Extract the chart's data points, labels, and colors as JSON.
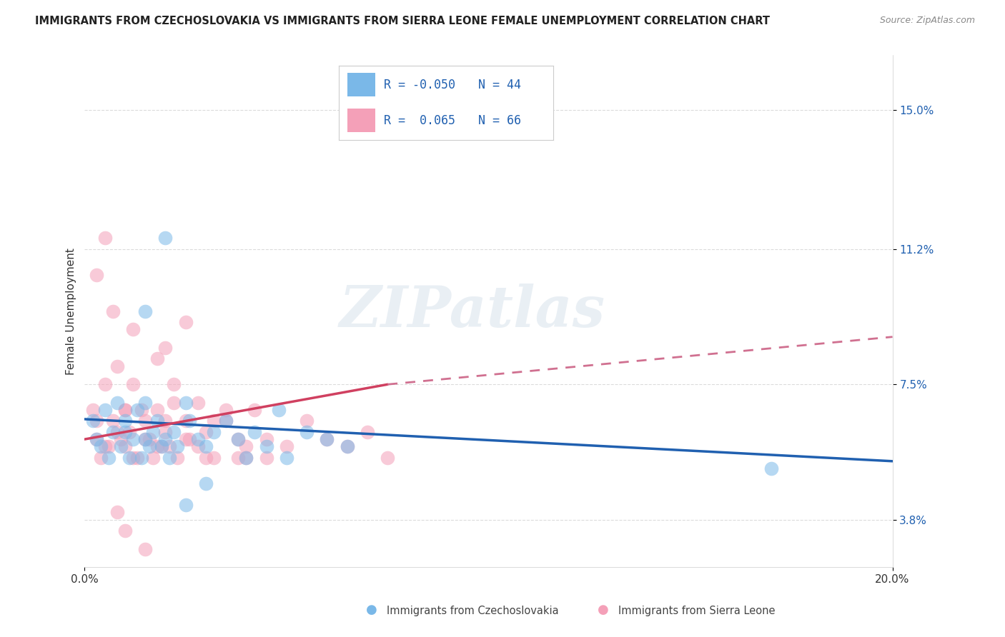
{
  "title": "IMMIGRANTS FROM CZECHOSLOVAKIA VS IMMIGRANTS FROM SIERRA LEONE FEMALE UNEMPLOYMENT CORRELATION CHART",
  "source": "Source: ZipAtlas.com",
  "ylabel": "Female Unemployment",
  "y_tick_labels": [
    "3.8%",
    "7.5%",
    "11.2%",
    "15.0%"
  ],
  "y_tick_values": [
    0.038,
    0.075,
    0.112,
    0.15
  ],
  "xlim": [
    0.0,
    0.2
  ],
  "ylim": [
    0.025,
    0.165
  ],
  "series1_label": "Immigrants from Czechoslovakia",
  "series2_label": "Immigrants from Sierra Leone",
  "color_blue": "#7ab8e8",
  "color_pink": "#f4a0b8",
  "color_blue_line": "#2060b0",
  "color_pink_line": "#d04060",
  "color_pink_dashed": "#d07090",
  "R1": -0.05,
  "N1": 44,
  "R2": 0.065,
  "N2": 66,
  "watermark": "ZIPatlas",
  "background_color": "#ffffff",
  "grid_color": "#cccccc",
  "title_fontsize": 10.5,
  "axis_label_fontsize": 11,
  "tick_fontsize": 11,
  "blue_line_x": [
    0.0,
    0.2
  ],
  "blue_line_y": [
    0.0655,
    0.054
  ],
  "pink_solid_line_x": [
    0.0,
    0.075
  ],
  "pink_solid_line_y": [
    0.06,
    0.075
  ],
  "pink_dashed_line_x": [
    0.075,
    0.2
  ],
  "pink_dashed_line_y": [
    0.075,
    0.088
  ],
  "blue_scatter_x": [
    0.002,
    0.003,
    0.004,
    0.005,
    0.006,
    0.007,
    0.008,
    0.009,
    0.01,
    0.01,
    0.011,
    0.012,
    0.013,
    0.014,
    0.015,
    0.015,
    0.016,
    0.017,
    0.018,
    0.019,
    0.02,
    0.021,
    0.022,
    0.023,
    0.025,
    0.026,
    0.028,
    0.03,
    0.032,
    0.035,
    0.038,
    0.04,
    0.042,
    0.045,
    0.048,
    0.05,
    0.055,
    0.06,
    0.065,
    0.015,
    0.02,
    0.17,
    0.025,
    0.03
  ],
  "blue_scatter_y": [
    0.065,
    0.06,
    0.058,
    0.068,
    0.055,
    0.062,
    0.07,
    0.058,
    0.062,
    0.065,
    0.055,
    0.06,
    0.068,
    0.055,
    0.06,
    0.07,
    0.058,
    0.062,
    0.065,
    0.058,
    0.06,
    0.055,
    0.062,
    0.058,
    0.07,
    0.065,
    0.06,
    0.058,
    0.062,
    0.065,
    0.06,
    0.055,
    0.062,
    0.058,
    0.068,
    0.055,
    0.062,
    0.06,
    0.058,
    0.095,
    0.115,
    0.052,
    0.042,
    0.048
  ],
  "pink_scatter_x": [
    0.002,
    0.003,
    0.004,
    0.005,
    0.006,
    0.007,
    0.008,
    0.009,
    0.01,
    0.01,
    0.011,
    0.012,
    0.013,
    0.014,
    0.015,
    0.016,
    0.017,
    0.018,
    0.019,
    0.02,
    0.021,
    0.022,
    0.023,
    0.025,
    0.026,
    0.028,
    0.03,
    0.032,
    0.035,
    0.038,
    0.04,
    0.042,
    0.045,
    0.003,
    0.005,
    0.008,
    0.01,
    0.012,
    0.015,
    0.018,
    0.02,
    0.025,
    0.03,
    0.035,
    0.04,
    0.045,
    0.05,
    0.055,
    0.06,
    0.065,
    0.07,
    0.075,
    0.02,
    0.025,
    0.008,
    0.01,
    0.015,
    0.003,
    0.005,
    0.007,
    0.012,
    0.018,
    0.022,
    0.028,
    0.032,
    0.038
  ],
  "pink_scatter_y": [
    0.068,
    0.06,
    0.055,
    0.075,
    0.058,
    0.065,
    0.08,
    0.06,
    0.068,
    0.058,
    0.062,
    0.075,
    0.055,
    0.068,
    0.065,
    0.06,
    0.055,
    0.068,
    0.058,
    0.062,
    0.058,
    0.07,
    0.055,
    0.065,
    0.06,
    0.058,
    0.062,
    0.055,
    0.065,
    0.06,
    0.058,
    0.068,
    0.055,
    0.065,
    0.058,
    0.062,
    0.068,
    0.055,
    0.06,
    0.058,
    0.065,
    0.06,
    0.055,
    0.068,
    0.055,
    0.06,
    0.058,
    0.065,
    0.06,
    0.058,
    0.062,
    0.055,
    0.085,
    0.092,
    0.04,
    0.035,
    0.03,
    0.105,
    0.115,
    0.095,
    0.09,
    0.082,
    0.075,
    0.07,
    0.065,
    0.055
  ]
}
